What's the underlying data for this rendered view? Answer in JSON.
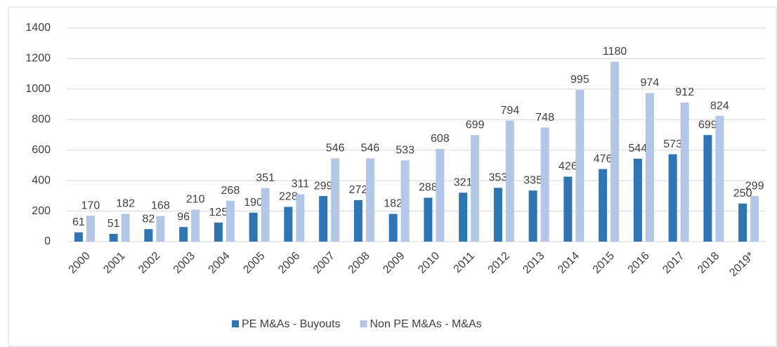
{
  "chart_data": {
    "type": "bar",
    "categories": [
      "2000",
      "2001",
      "2002",
      "2003",
      "2004",
      "2005",
      "2006",
      "2007",
      "2008",
      "2009",
      "2010",
      "2011",
      "2012",
      "2013",
      "2014",
      "2015",
      "2016",
      "2017",
      "2018",
      "2019*"
    ],
    "series": [
      {
        "name": "PE M&As - Buyouts",
        "color": "#2e75b6",
        "values": [
          61,
          51,
          82,
          96,
          125,
          190,
          228,
          299,
          272,
          182,
          288,
          321,
          353,
          335,
          426,
          476,
          544,
          573,
          699,
          250
        ]
      },
      {
        "name": "Non PE M&As - M&As",
        "color": "#b4c7e7",
        "values": [
          170,
          182,
          168,
          210,
          268,
          351,
          311,
          546,
          546,
          533,
          608,
          699,
          794,
          748,
          995,
          1180,
          974,
          912,
          824,
          299
        ]
      }
    ],
    "ylim": [
      0,
      1400
    ],
    "yticks": [
      0,
      200,
      400,
      600,
      800,
      1000,
      1200,
      1400
    ],
    "grid": true,
    "legend": "bottom"
  }
}
